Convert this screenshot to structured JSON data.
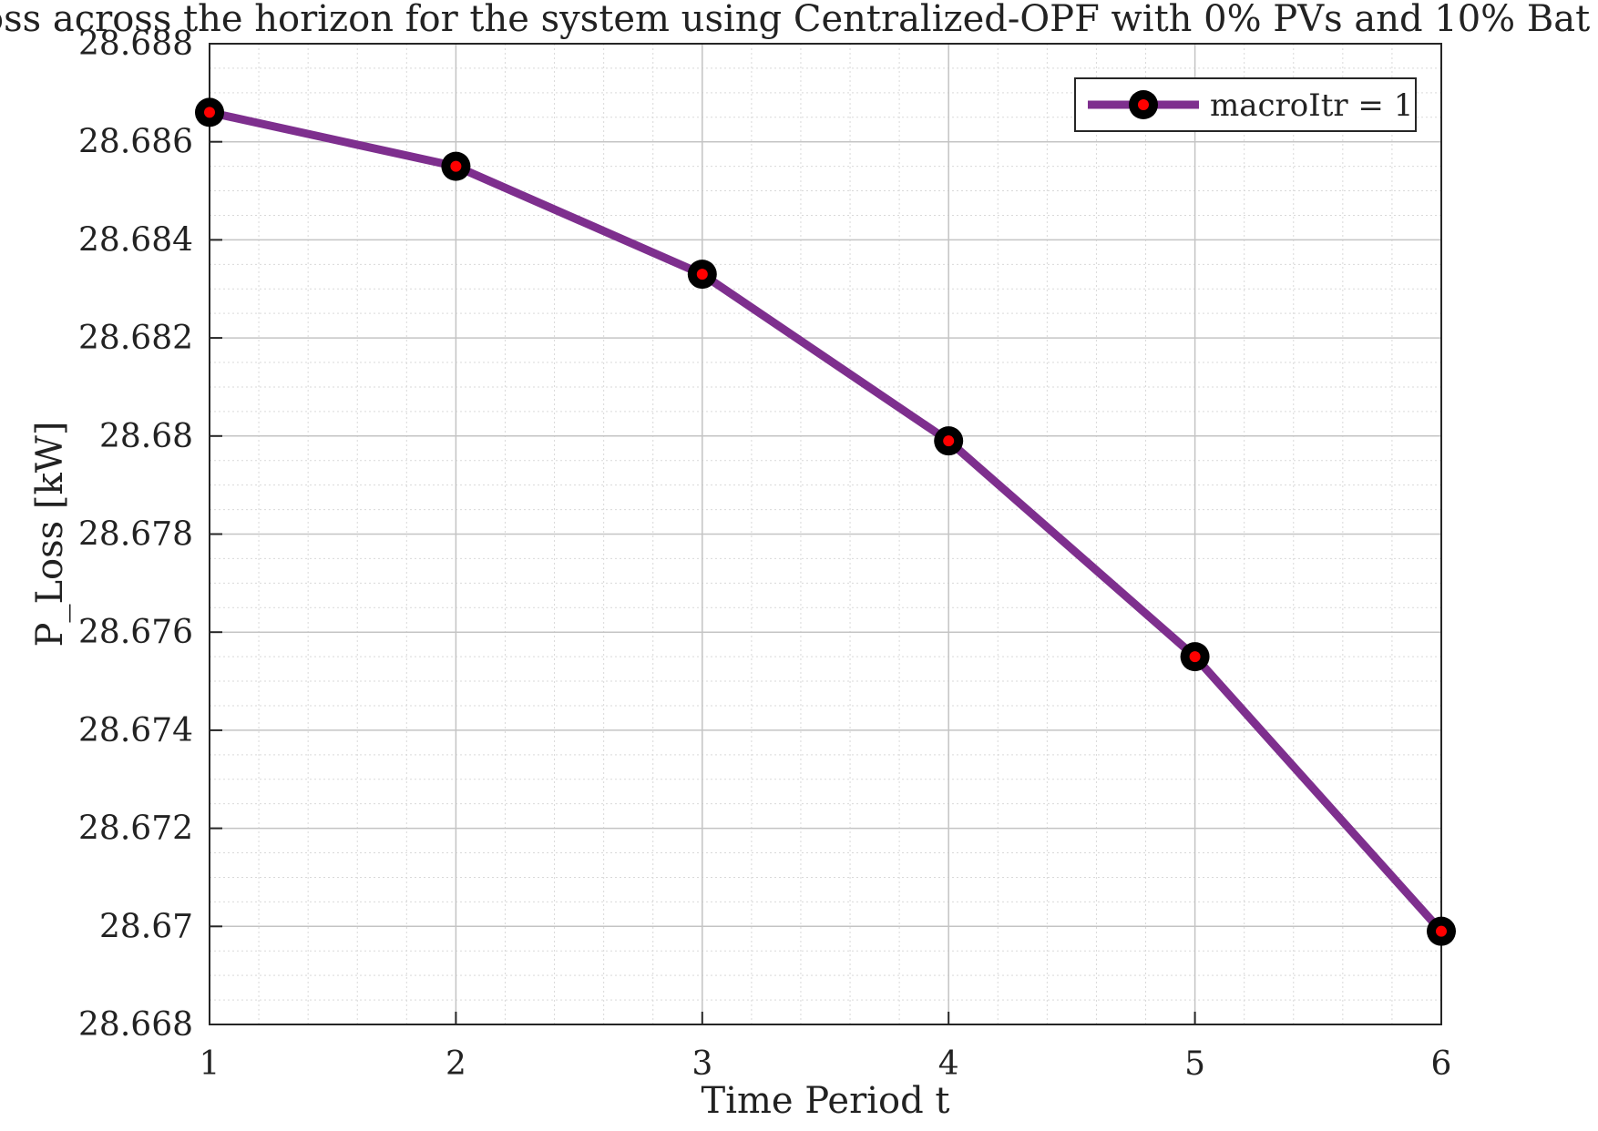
{
  "chart_data": {
    "type": "line",
    "title": "oss across the horizon for the system using Centralized-OPF with 0% PVs and 10% Bat",
    "xlabel": "Time Period t",
    "ylabel": "P_Loss [kW]",
    "x": [
      1,
      2,
      3,
      4,
      5,
      6
    ],
    "xlim": [
      1,
      6
    ],
    "ylim": [
      28.668,
      28.688
    ],
    "xticks": [
      "1",
      "2",
      "3",
      "4",
      "5",
      "6"
    ],
    "yticks": [
      "28.668",
      "28.67",
      "28.672",
      "28.674",
      "28.676",
      "28.678",
      "28.68",
      "28.682",
      "28.684",
      "28.686",
      "28.688"
    ],
    "grid": true,
    "minor_grid": true,
    "legend_position": "top-right",
    "series": [
      {
        "name": "macroItr = 1",
        "values": [
          28.6866,
          28.6855,
          28.6833,
          28.6799,
          28.6755,
          28.6699
        ],
        "line_color": "#7e2f8e",
        "marker_edge_color": "#000000",
        "marker_face_color": "#ff0000"
      }
    ]
  }
}
